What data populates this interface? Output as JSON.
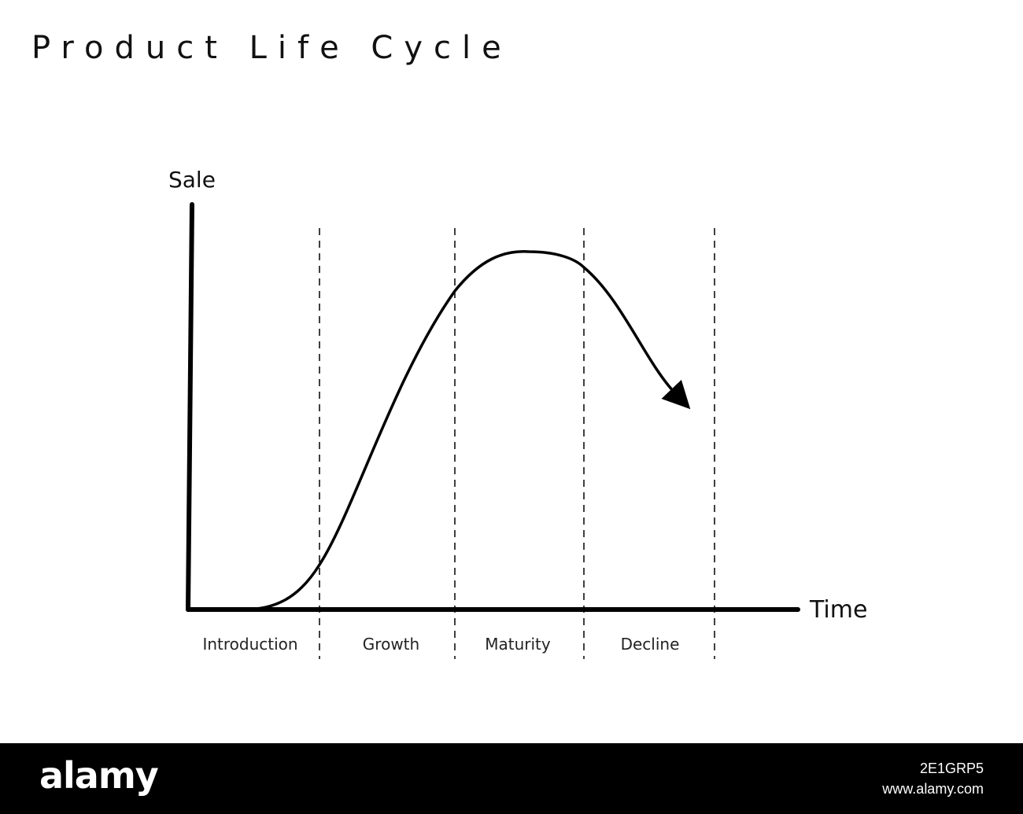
{
  "title": "Product Life Cycle",
  "axes": {
    "y_label": "Sale",
    "x_label": "Time"
  },
  "phases": [
    "Introduction",
    "Growth",
    "Maturity",
    "Decline"
  ],
  "footer": {
    "brand": "alamy",
    "image_id": "2E1GRP5",
    "site_url": "www.alamy.com"
  },
  "colors": {
    "line": "#000000",
    "background": "#ffffff",
    "footer_bg": "#000000",
    "footer_text": "#ffffff"
  }
}
